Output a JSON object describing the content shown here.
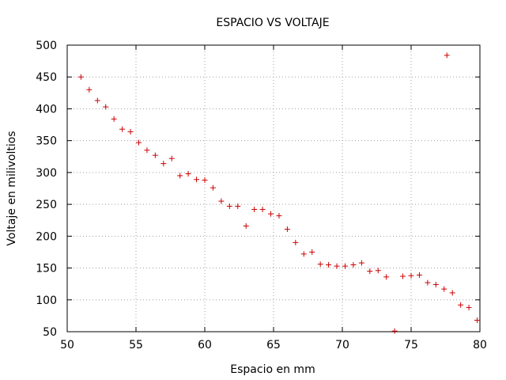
{
  "chart_data": {
    "type": "scatter",
    "title": "ESPACIO VS VOLTAJE",
    "xlabel": "Espacio en mm",
    "ylabel": "Voltaje en milivoltios",
    "xlim": [
      50,
      80
    ],
    "ylim": [
      50,
      500
    ],
    "xticks": [
      50,
      55,
      60,
      65,
      70,
      75,
      80
    ],
    "yticks": [
      50,
      100,
      150,
      200,
      250,
      300,
      350,
      400,
      450,
      500
    ],
    "grid": true,
    "marker": "plus",
    "color": "#cc0000",
    "series": [
      {
        "x": [
          51.0,
          51.6,
          52.2,
          52.8,
          53.4,
          54.0,
          54.6,
          55.2,
          55.8,
          56.4,
          57.0,
          57.6,
          58.2,
          58.8,
          59.4,
          60.0,
          60.6,
          61.2,
          61.8,
          62.4,
          63.0,
          63.6,
          64.2,
          64.8,
          65.4,
          66.0,
          66.6,
          67.2,
          67.8,
          68.4,
          69.0,
          69.6,
          70.2,
          70.8,
          71.4,
          72.0,
          72.6,
          73.2,
          73.8,
          74.4,
          75.0,
          75.6,
          76.2,
          76.8,
          77.4,
          77.6,
          78.0,
          78.6,
          79.2,
          79.8
        ],
        "y": [
          450,
          430,
          413,
          403,
          384,
          368,
          364,
          347,
          335,
          327,
          314,
          322,
          295,
          298,
          289,
          288,
          276,
          255,
          247,
          247,
          216,
          242,
          242,
          235,
          232,
          211,
          190,
          172,
          175,
          156,
          155,
          153,
          153,
          155,
          158,
          145,
          146,
          136,
          51,
          137,
          138,
          139,
          127,
          124,
          117,
          484,
          111,
          92,
          88,
          68
        ]
      }
    ]
  }
}
